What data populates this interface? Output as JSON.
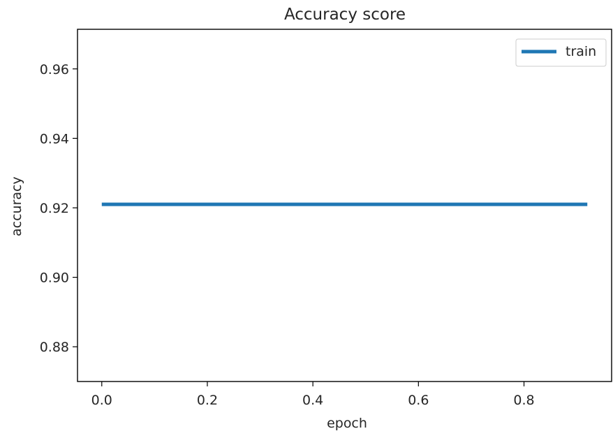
{
  "chart_data": {
    "type": "line",
    "title": "Accuracy score",
    "xlabel": "epoch",
    "ylabel": "accuracy",
    "xlim": [
      -0.046,
      0.966
    ],
    "ylim": [
      0.87,
      0.9714
    ],
    "x_ticks": [
      "0.0",
      "0.2",
      "0.4",
      "0.6",
      "0.8"
    ],
    "y_ticks": [
      "0.88",
      "0.90",
      "0.92",
      "0.94",
      "0.96"
    ],
    "grid": false,
    "legend_position": "upper right",
    "series": [
      {
        "name": "train",
        "color": "#1f77b4",
        "x": [
          0.0,
          0.92
        ],
        "y": [
          0.921,
          0.921
        ]
      }
    ]
  }
}
